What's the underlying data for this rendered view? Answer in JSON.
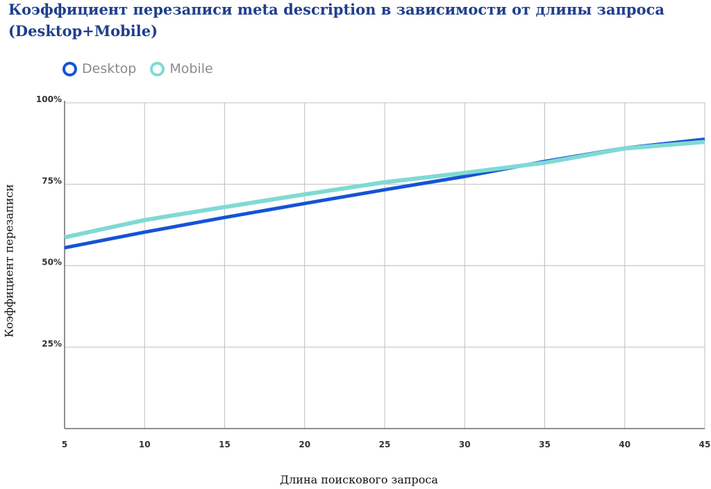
{
  "chart_data": {
    "type": "line",
    "title": "Коэффициент перезаписи meta description в зависимости от длины запроса (Desktop+Mobile)",
    "xlabel": "Длина поискового запроса",
    "ylabel": "Коэффициент перезаписи",
    "x": [
      5,
      10,
      15,
      20,
      25,
      30,
      35,
      40,
      45
    ],
    "xlim": [
      5,
      45
    ],
    "ylim": [
      0,
      100
    ],
    "x_ticks": [
      "5",
      "10",
      "15",
      "20",
      "25",
      "30",
      "35",
      "40",
      "45"
    ],
    "y_ticks": [
      "25%",
      "50%",
      "75%",
      "100%"
    ],
    "y_tick_values": [
      25,
      50,
      75,
      100
    ],
    "grid": true,
    "legend_position": "top-left",
    "series": [
      {
        "name": "Desktop",
        "color": "#1553d6",
        "values": [
          55.5,
          60.3,
          64.8,
          69.1,
          73.3,
          77.4,
          82,
          86.1,
          88.8
        ]
      },
      {
        "name": "Mobile",
        "color": "#7fdad4",
        "values": [
          58.7,
          64,
          68,
          71.9,
          75.6,
          78.5,
          81.6,
          86,
          88
        ]
      }
    ]
  }
}
